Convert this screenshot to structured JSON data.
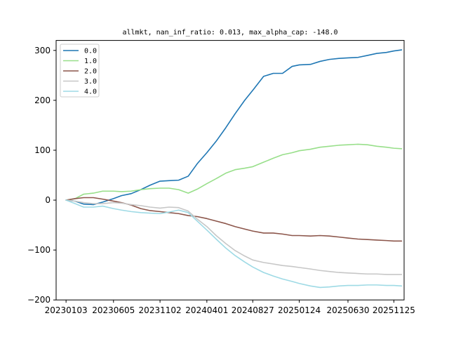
{
  "chart_data": {
    "type": "line",
    "title": "allmkt, nan_inf_ratio: 0.013, max_alpha_cap: -148.0",
    "xlabel": "",
    "ylabel": "",
    "ylim": [
      -200,
      320
    ],
    "xlim": [
      "2022-12-02",
      "2025-12-28"
    ],
    "x_ticks": [
      "20230103",
      "20230605",
      "20231102",
      "20240401",
      "20240827",
      "20250124",
      "20250630",
      "20251125"
    ],
    "y_ticks": [
      -200,
      -100,
      0,
      100,
      200,
      300
    ],
    "grid": false,
    "legend": "top-left",
    "x": [
      "2023-01-03",
      "2023-02-01",
      "2023-03-01",
      "2023-04-01",
      "2023-05-01",
      "2023-06-05",
      "2023-07-01",
      "2023-08-01",
      "2023-09-01",
      "2023-10-01",
      "2023-11-02",
      "2023-12-01",
      "2024-01-01",
      "2024-02-01",
      "2024-03-01",
      "2024-04-01",
      "2024-05-01",
      "2024-06-01",
      "2024-07-01",
      "2024-08-01",
      "2024-08-27",
      "2024-10-01",
      "2024-11-01",
      "2024-12-01",
      "2025-01-01",
      "2025-01-24",
      "2025-03-01",
      "2025-04-01",
      "2025-05-01",
      "2025-06-01",
      "2025-06-30",
      "2025-08-01",
      "2025-09-01",
      "2025-10-01",
      "2025-11-01",
      "2025-11-25",
      "2025-12-20"
    ],
    "series": [
      {
        "name": "0.0",
        "color": "#1f77b4",
        "values": [
          0,
          -2,
          -8,
          -9,
          -4,
          3,
          9,
          13,
          21,
          30,
          38,
          39,
          40,
          48,
          73,
          95,
          118,
          145,
          173,
          200,
          220,
          248,
          254,
          254,
          268,
          271,
          272,
          278,
          282,
          284,
          285,
          286,
          290,
          294,
          296,
          299,
          301
        ]
      },
      {
        "name": "1.0",
        "color": "#98df8a",
        "values": [
          0,
          3,
          12,
          14,
          18,
          18,
          17,
          18,
          21,
          23,
          24,
          24,
          21,
          14,
          22,
          33,
          43,
          54,
          61,
          64,
          67,
          76,
          84,
          91,
          95,
          99,
          102,
          106,
          108,
          110,
          111,
          112,
          111,
          108,
          106,
          104,
          103
        ]
      },
      {
        "name": "2.0",
        "color": "#8c564b",
        "values": [
          0,
          3,
          5,
          5,
          2,
          -2,
          -5,
          -10,
          -17,
          -21,
          -23,
          -25,
          -27,
          -31,
          -33,
          -37,
          -42,
          -47,
          -53,
          -58,
          -62,
          -66,
          -66,
          -68,
          -71,
          -71,
          -72,
          -71,
          -72,
          -74,
          -76,
          -78,
          -79,
          -80,
          -81,
          -82,
          -82
        ]
      },
      {
        "name": "3.0",
        "color": "#c7c7c7",
        "values": [
          0,
          -2,
          -5,
          -7,
          -7,
          -5,
          -6,
          -9,
          -11,
          -14,
          -16,
          -14,
          -15,
          -22,
          -38,
          -53,
          -71,
          -87,
          -101,
          -112,
          -120,
          -125,
          -128,
          -131,
          -133,
          -135,
          -138,
          -141,
          -143,
          -145,
          -146,
          -147,
          -148,
          -148,
          -149,
          -149,
          -149
        ]
      },
      {
        "name": "4.0",
        "color": "#9edae5",
        "values": [
          0,
          -7,
          -14,
          -14,
          -12,
          -17,
          -20,
          -23,
          -25,
          -26,
          -27,
          -24,
          -20,
          -25,
          -42,
          -60,
          -78,
          -96,
          -111,
          -124,
          -134,
          -145,
          -152,
          -158,
          -163,
          -167,
          -172,
          -175,
          -174,
          -172,
          -171,
          -171,
          -170,
          -170,
          -171,
          -171,
          -172
        ]
      }
    ]
  }
}
